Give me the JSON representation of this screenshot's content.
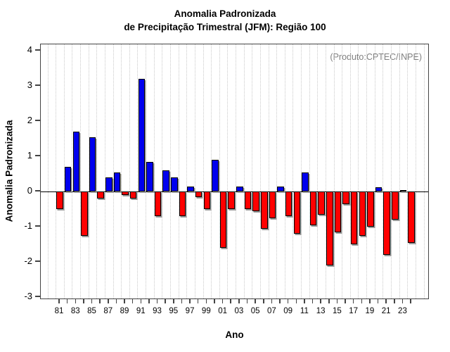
{
  "title_line1": "Anomalia Padronizada",
  "title_line2": "de Precipitação Trimestral (JFM): Região 100",
  "annotation": "(Produto:CPTEC/INPE)",
  "chart_data": {
    "type": "bar",
    "title": "Anomalia Padronizada de Precipitação Trimestral (JFM): Região 100",
    "xlabel": "Ano",
    "ylabel": "Anomalia Padronizada",
    "ylim": [
      -3,
      4
    ],
    "y_ticks": [
      4,
      3,
      2,
      1,
      0,
      -1,
      -2,
      -3
    ],
    "x_tick_labels": [
      "81",
      "83",
      "85",
      "87",
      "89",
      "91",
      "93",
      "95",
      "97",
      "99",
      "01",
      "03",
      "05",
      "07",
      "09",
      "11",
      "13",
      "15",
      "17",
      "19",
      "21",
      "23"
    ],
    "grid": "vertical-dotted",
    "legend": "none",
    "positive_color": "#0000EE",
    "negative_color": "#FF0000",
    "categories": [
      1981,
      1982,
      1983,
      1984,
      1985,
      1986,
      1987,
      1988,
      1989,
      1990,
      1991,
      1992,
      1993,
      1994,
      1995,
      1996,
      1997,
      1998,
      1999,
      2000,
      2001,
      2002,
      2003,
      2004,
      2005,
      2006,
      2007,
      2008,
      2009,
      2010,
      2011,
      2012,
      2013,
      2014,
      2015,
      2016,
      2017,
      2018,
      2019,
      2020,
      2021,
      2022,
      2023,
      2024
    ],
    "values": [
      -0.5,
      0.7,
      1.7,
      -1.25,
      1.55,
      -0.2,
      0.4,
      0.55,
      -0.1,
      -0.2,
      3.2,
      0.85,
      -0.7,
      0.6,
      0.4,
      -0.7,
      0.15,
      -0.15,
      -0.5,
      0.9,
      -1.6,
      -0.5,
      0.15,
      -0.5,
      -0.55,
      -1.05,
      -0.75,
      0.15,
      -0.7,
      -1.2,
      0.55,
      -0.95,
      -0.65,
      -2.1,
      -1.15,
      -0.35,
      -1.5,
      -1.25,
      -1.0,
      0.12,
      -1.8,
      -0.8,
      0.05,
      -1.45
    ]
  }
}
